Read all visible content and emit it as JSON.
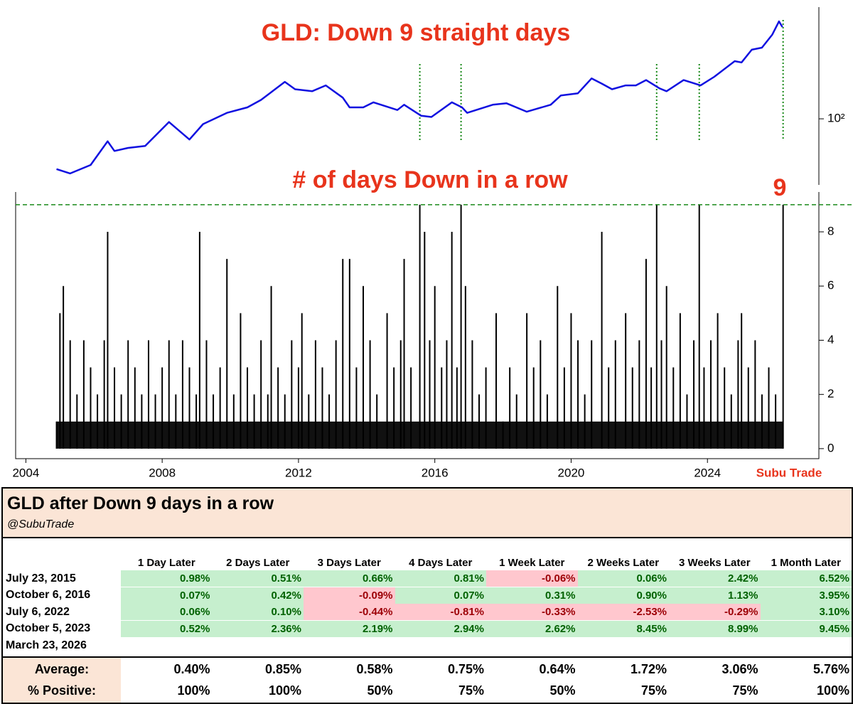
{
  "chart_data": [
    {
      "type": "line",
      "title": "GLD: Down 9 straight days",
      "log_scale": true,
      "color": "#1010e0",
      "x": [
        2004.9,
        2005.3,
        2005.9,
        2006.4,
        2006.6,
        2007.0,
        2007.5,
        2008.2,
        2008.8,
        2009.2,
        2009.9,
        2010.5,
        2010.9,
        2011.6,
        2011.9,
        2012.4,
        2012.8,
        2013.3,
        2013.5,
        2013.9,
        2014.2,
        2014.9,
        2015.1,
        2015.6,
        2015.9,
        2016.5,
        2016.8,
        2016.95,
        2017.7,
        2018.1,
        2018.7,
        2019.4,
        2019.7,
        2020.2,
        2020.6,
        2020.9,
        2021.2,
        2021.6,
        2021.9,
        2022.2,
        2022.6,
        2022.8,
        2023.3,
        2023.8,
        2024.2,
        2024.8,
        2025.0,
        2025.3,
        2025.6,
        2025.9,
        2026.1,
        2026.2
      ],
      "values": [
        45,
        42,
        48,
        70,
        60,
        63,
        65,
        95,
        72,
        92,
        110,
        120,
        135,
        180,
        160,
        155,
        170,
        140,
        120,
        120,
        130,
        115,
        125,
        105,
        103,
        130,
        120,
        110,
        125,
        128,
        112,
        125,
        145,
        150,
        190,
        175,
        160,
        170,
        170,
        185,
        162,
        155,
        185,
        170,
        195,
        250,
        245,
        300,
        310,
        380,
        470,
        430
      ],
      "events": [
        2015.56,
        2016.77,
        2022.51,
        2023.76,
        2026.22
      ],
      "event_color": "#1a8a1a",
      "xlim": [
        2003.7,
        2027.27
      ],
      "ylim": [
        35,
        590
      ],
      "yticks": [
        {
          "value": 100,
          "label": "10²"
        }
      ]
    },
    {
      "type": "bar",
      "title": "# of days Down in a row",
      "annotation": "9",
      "threshold": 9,
      "threshold_color": "#1a8a1a",
      "color": "#000000",
      "source": "Subu Trade",
      "x": [
        2004.9,
        2005.0,
        2005.1,
        2005.3,
        2005.5,
        2005.7,
        2005.9,
        2006.1,
        2006.3,
        2006.4,
        2006.6,
        2006.8,
        2007.0,
        2007.2,
        2007.4,
        2007.6,
        2007.8,
        2008.0,
        2008.2,
        2008.4,
        2008.6,
        2008.8,
        2009.0,
        2009.1,
        2009.3,
        2009.5,
        2009.7,
        2009.9,
        2010.1,
        2010.3,
        2010.5,
        2010.7,
        2010.9,
        2011.1,
        2011.2,
        2011.4,
        2011.6,
        2011.8,
        2012.0,
        2012.1,
        2012.3,
        2012.5,
        2012.7,
        2012.9,
        2013.1,
        2013.3,
        2013.5,
        2013.7,
        2013.9,
        2014.1,
        2014.3,
        2014.6,
        2014.8,
        2015.0,
        2015.1,
        2015.3,
        2015.56,
        2015.7,
        2015.85,
        2016.0,
        2016.2,
        2016.35,
        2016.5,
        2016.65,
        2016.77,
        2016.9,
        2017.1,
        2017.3,
        2017.5,
        2017.8,
        2018.0,
        2018.2,
        2018.4,
        2018.7,
        2018.9,
        2019.1,
        2019.3,
        2019.6,
        2019.8,
        2020.0,
        2020.2,
        2020.4,
        2020.6,
        2020.9,
        2021.1,
        2021.3,
        2021.6,
        2021.8,
        2022.0,
        2022.2,
        2022.35,
        2022.51,
        2022.65,
        2022.8,
        2023.0,
        2023.2,
        2023.4,
        2023.6,
        2023.76,
        2023.9,
        2024.1,
        2024.3,
        2024.5,
        2024.7,
        2024.9,
        2025.0,
        2025.2,
        2025.4,
        2025.6,
        2025.8,
        2026.0,
        2026.22
      ],
      "values": [
        1,
        5,
        6,
        4,
        2,
        4,
        3,
        2,
        4,
        8,
        3,
        2,
        4,
        3,
        2,
        4,
        2,
        3,
        4,
        2,
        4,
        3,
        2,
        8,
        4,
        2,
        3,
        7,
        2,
        5,
        3,
        2,
        4,
        2,
        6,
        3,
        2,
        4,
        3,
        5,
        2,
        4,
        3,
        2,
        4,
        7,
        7,
        3,
        6,
        4,
        2,
        5,
        3,
        4,
        7,
        3,
        9,
        8,
        4,
        6,
        3,
        4,
        8,
        3,
        9,
        6,
        4,
        2,
        3,
        5,
        1,
        3,
        2,
        5,
        3,
        4,
        2,
        6,
        3,
        5,
        4,
        2,
        4,
        8,
        3,
        4,
        5,
        3,
        4,
        7,
        3,
        9,
        4,
        6,
        3,
        5,
        2,
        4,
        9,
        3,
        4,
        5,
        3,
        2,
        4,
        5,
        3,
        4,
        2,
        3,
        2,
        9
      ],
      "xlim": [
        2003.7,
        2027.27
      ],
      "ylim": [
        -0.37,
        9.47
      ],
      "xticks": [
        2004,
        2008,
        2012,
        2016,
        2020,
        2024
      ],
      "yticks": [
        0,
        2,
        4,
        6,
        8
      ]
    }
  ],
  "table": {
    "title": "GLD after Down 9 days in a row",
    "subtitle": "@SubuTrade",
    "columns": [
      "1 Day Later",
      "2 Days Later",
      "3 Days Later",
      "4 Days Later",
      "1 Week Later",
      "2 Weeks Later",
      "3 Weeks Later",
      "1 Month Later"
    ],
    "rows": [
      {
        "date": "July 23, 2015",
        "cells": [
          "0.98%",
          "0.51%",
          "0.66%",
          "0.81%",
          "-0.06%",
          "0.06%",
          "2.42%",
          "6.52%"
        ]
      },
      {
        "date": "October 6, 2016",
        "cells": [
          "0.07%",
          "0.42%",
          "-0.09%",
          "0.07%",
          "0.31%",
          "0.90%",
          "1.13%",
          "3.95%"
        ]
      },
      {
        "date": "July 6, 2022",
        "cells": [
          "0.06%",
          "0.10%",
          "-0.44%",
          "-0.81%",
          "-0.33%",
          "-2.53%",
          "-0.29%",
          "3.10%"
        ]
      },
      {
        "date": "October 5, 2023",
        "cells": [
          "0.52%",
          "2.36%",
          "2.19%",
          "2.94%",
          "2.62%",
          "8.45%",
          "8.99%",
          "9.45%"
        ]
      },
      {
        "date": "March 23, 2026",
        "cells": []
      }
    ],
    "summary": [
      {
        "label": "Average:",
        "cells": [
          "0.40%",
          "0.85%",
          "0.58%",
          "0.75%",
          "0.64%",
          "1.72%",
          "3.06%",
          "5.76%"
        ]
      },
      {
        "label": "% Positive:",
        "cells": [
          "100%",
          "100%",
          "50%",
          "75%",
          "50%",
          "75%",
          "75%",
          "100%"
        ]
      }
    ]
  }
}
